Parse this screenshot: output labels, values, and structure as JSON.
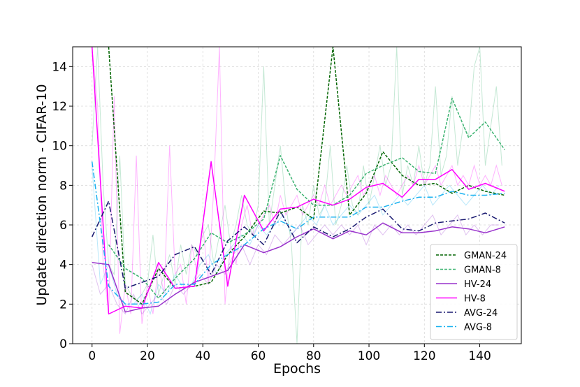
{
  "chart_data": {
    "type": "line",
    "title": "",
    "xlabel": "Epochs",
    "ylabel": "Update direction norm - CIFAR-10",
    "xlim": [
      -7,
      155
    ],
    "ylim": [
      0,
      15
    ],
    "xticks": [
      0,
      20,
      40,
      60,
      80,
      100,
      120,
      140
    ],
    "yticks": [
      0,
      2,
      4,
      6,
      8,
      10,
      12,
      14
    ],
    "grid": true,
    "legend_position": "lower-right",
    "x": [
      0,
      6,
      12,
      18,
      24,
      30,
      37,
      43,
      49,
      55,
      62,
      68,
      74,
      80,
      87,
      93,
      99,
      105,
      112,
      118,
      124,
      130,
      136,
      142,
      149
    ],
    "series": [
      {
        "name": "GMAN-24",
        "color": "#006400",
        "dash": "4,2",
        "values": [
          null,
          15,
          2.6,
          2.0,
          3.8,
          2.8,
          2.9,
          3.1,
          4.5,
          5.4,
          6.7,
          6.6,
          6.9,
          6.3,
          15,
          6.5,
          7.6,
          9.7,
          8.5,
          8.0,
          8.1,
          7.6,
          8.0,
          7.7,
          7.5
        ]
      },
      {
        "name": "GMAN-8",
        "color": "#3cb371",
        "dash": "4,2",
        "values": [
          null,
          5.0,
          3.8,
          3.3,
          2.3,
          3.3,
          4.3,
          5.6,
          5.1,
          5.5,
          6.3,
          9.5,
          7.8,
          7.0,
          7.0,
          7.5,
          8.6,
          9.0,
          9.4,
          8.7,
          8.6,
          12.4,
          10.4,
          11.2,
          9.8
        ]
      },
      {
        "name": "HV-24",
        "color": "#9932cc",
        "dash": "",
        "values": [
          4.1,
          4.0,
          1.6,
          1.8,
          1.9,
          2.5,
          3.1,
          3.4,
          3.7,
          5.0,
          4.6,
          4.9,
          5.4,
          5.8,
          5.3,
          5.7,
          5.5,
          6.1,
          5.6,
          5.6,
          5.7,
          5.9,
          5.8,
          5.6,
          5.9
        ]
      },
      {
        "name": "HV-8",
        "color": "#ff00ff",
        "dash": "",
        "values": [
          15,
          1.5,
          1.9,
          1.8,
          4.1,
          2.8,
          2.9,
          9.2,
          2.9,
          7.5,
          5.7,
          6.8,
          6.9,
          7.3,
          7.0,
          7.3,
          7.9,
          8.1,
          7.4,
          8.3,
          8.3,
          8.8,
          7.8,
          8.1,
          7.7
        ]
      },
      {
        "name": "AVG-24",
        "color": "#191970",
        "dash": "8,3,2,3",
        "values": [
          5.4,
          7.2,
          2.8,
          3.1,
          3.4,
          4.5,
          4.9,
          3.5,
          5.2,
          5.9,
          5.0,
          6.7,
          5.1,
          5.9,
          5.4,
          5.8,
          6.4,
          6.8,
          5.8,
          5.7,
          6.1,
          6.2,
          6.3,
          6.6,
          6.1
        ]
      },
      {
        "name": "AVG-8",
        "color": "#1ab2f0",
        "dash": "8,3,2,3",
        "values": [
          9.2,
          2.9,
          2.0,
          2.0,
          2.1,
          3.0,
          3.0,
          4.0,
          4.5,
          5.0,
          5.8,
          6.2,
          5.8,
          6.4,
          6.4,
          6.4,
          6.9,
          6.9,
          7.2,
          7.4,
          7.4,
          7.7,
          7.5,
          7.5,
          7.6
        ]
      }
    ],
    "raw_traces": [
      {
        "color": "#3cb371",
        "x": [
          0,
          2,
          4,
          6,
          8,
          10,
          12,
          14,
          16,
          18,
          20,
          22,
          24,
          26,
          28,
          30,
          32,
          34,
          36,
          38,
          40,
          42,
          44,
          46,
          48,
          50,
          52,
          54,
          56,
          58,
          60,
          62,
          64,
          66,
          68,
          70,
          72,
          74,
          76,
          78,
          80,
          82,
          84,
          86,
          88,
          90,
          92,
          94,
          96,
          98,
          100,
          102,
          104,
          106,
          108,
          110,
          112,
          114,
          116,
          118,
          120,
          122,
          124,
          126,
          128,
          130,
          132,
          134,
          136,
          138,
          140,
          142,
          144,
          146,
          148
        ],
        "values": [
          10,
          15,
          8,
          4,
          3.5,
          9.5,
          3,
          2.5,
          2.2,
          2.5,
          3,
          5.5,
          2.5,
          3.5,
          4.5,
          3,
          5,
          3.5,
          5,
          4.5,
          5.5,
          6,
          4,
          5.5,
          7,
          5,
          6,
          7.5,
          6,
          5.5,
          7,
          14,
          6,
          8,
          10,
          7,
          5,
          0,
          7,
          6,
          8,
          6.5,
          7,
          10,
          6,
          7,
          9,
          7,
          6.5,
          9,
          7,
          8.5,
          10,
          8,
          9,
          15,
          7.5,
          9,
          8,
          10,
          8,
          9,
          13,
          8.5,
          9.5,
          12.5,
          9,
          11,
          10.5,
          14,
          15,
          9,
          11,
          13,
          9
        ]
      },
      {
        "color": "#ff00ff",
        "x": [
          0,
          2,
          4,
          6,
          8,
          10,
          12,
          14,
          16,
          18,
          20,
          22,
          24,
          26,
          28,
          30,
          32,
          34,
          36,
          38,
          40,
          42,
          44,
          46,
          48,
          50,
          52,
          54,
          56,
          58,
          60,
          62,
          64,
          66,
          68,
          70,
          72,
          74,
          76,
          78,
          80,
          82,
          84,
          86,
          88,
          90,
          92,
          94,
          96,
          98,
          100,
          102,
          104,
          106,
          108,
          110,
          112,
          114,
          116,
          118,
          120,
          122,
          124,
          126,
          128,
          130,
          132,
          134,
          136,
          138,
          140,
          142,
          144,
          146,
          148
        ],
        "values": [
          15,
          12,
          4,
          1.5,
          12.5,
          0.5,
          3,
          1.5,
          9.5,
          1,
          3,
          1.5,
          4,
          2.5,
          10,
          3.5,
          4,
          2,
          5,
          3.5,
          6,
          3,
          8,
          15,
          2,
          5,
          4,
          6,
          7,
          5.5,
          6,
          6.5,
          7,
          6,
          7.5,
          6.5,
          7,
          7.5,
          6.5,
          7,
          7.5,
          7,
          8,
          7,
          7.5,
          8,
          7.5,
          8,
          8.5,
          7.5,
          8,
          8.5,
          7.5,
          8.5,
          8,
          7.5,
          8,
          8.5,
          8,
          9,
          8,
          8.5,
          9,
          8,
          8.5,
          9,
          8,
          8.5,
          8,
          9,
          8,
          8.5,
          8,
          9,
          8
        ]
      },
      {
        "color": "#1ab2f0",
        "x": [
          0,
          3,
          6,
          9,
          12,
          15,
          18,
          21,
          24,
          27,
          30,
          33,
          36,
          39,
          42,
          45,
          48,
          51,
          54,
          57,
          60,
          63,
          66,
          69,
          72,
          75,
          78,
          81,
          84,
          87,
          90,
          93,
          96,
          99,
          102,
          105,
          108,
          111,
          114,
          117,
          120,
          123,
          126,
          129,
          132,
          135,
          138,
          141,
          144,
          147
        ],
        "values": [
          9,
          3,
          4,
          2.5,
          2,
          2,
          2.5,
          1.5,
          3,
          2.5,
          3.5,
          2.8,
          3,
          4,
          4.5,
          3.5,
          4.5,
          5,
          5.5,
          5,
          6,
          5.5,
          6,
          6.5,
          5.5,
          6,
          6.5,
          6,
          7,
          6,
          6.5,
          7,
          6.5,
          7,
          7.5,
          6.5,
          7,
          7.5,
          7,
          7.5,
          8,
          7,
          7.5,
          8,
          7.5,
          7,
          7.5,
          8,
          7.5,
          8
        ]
      },
      {
        "color": "#9932cc",
        "x": [
          0,
          3,
          6,
          9,
          12,
          15,
          18,
          21,
          24,
          27,
          30,
          33,
          36,
          39,
          42,
          45,
          48,
          51,
          54,
          57,
          60,
          63,
          66,
          69,
          72,
          75,
          78,
          81,
          84,
          87,
          90,
          93,
          96,
          99,
          102,
          105,
          108,
          111,
          114,
          117,
          120,
          123,
          126,
          129,
          132,
          135,
          138,
          141,
          144,
          147
        ],
        "values": [
          4,
          2.5,
          3,
          2,
          1.5,
          2.5,
          1.5,
          2,
          2.5,
          2,
          3,
          2.5,
          3,
          3.5,
          3,
          4,
          3.5,
          4.5,
          5,
          4,
          5,
          4.5,
          5.5,
          5,
          5.5,
          6,
          5,
          5.5,
          6,
          5.5,
          6,
          5.5,
          6,
          5,
          6,
          5.5,
          6,
          5.5,
          6,
          5.5,
          6,
          6.5,
          5.5,
          6,
          6.5,
          5.5,
          6,
          5.5,
          6,
          6
        ]
      }
    ],
    "legend": [
      "GMAN-24",
      "GMAN-8",
      "HV-24",
      "HV-8",
      "AVG-24",
      "AVG-8"
    ]
  }
}
